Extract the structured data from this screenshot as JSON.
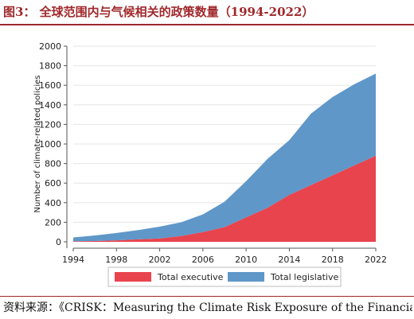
{
  "figure": {
    "title": "图3： 全球范围内与气候相关的政策数量（1994-2022）",
    "source": "资料来源：《CRISK：Measuring the Climate Risk Exposure of the Financial"
  },
  "colors": {
    "title": "#a0282c",
    "executive": "#e8444e",
    "legislative": "#5f97c9",
    "axis": "#555555"
  },
  "chart_data": {
    "type": "area",
    "stacked": true,
    "ylabel": "Number of climate-related policies",
    "xlabel": "",
    "xlim": [
      1994,
      2022
    ],
    "ylim": [
      0,
      2000
    ],
    "x_ticks": [
      1994,
      1998,
      2002,
      2006,
      2010,
      2014,
      2018,
      2022
    ],
    "y_ticks": [
      0,
      200,
      400,
      600,
      800,
      1000,
      1200,
      1400,
      1600,
      1800,
      2000
    ],
    "grid": "horizontal",
    "legend_position": "bottom",
    "x": [
      1994,
      1996,
      1998,
      2000,
      2002,
      2004,
      2006,
      2008,
      2010,
      2012,
      2014,
      2016,
      2018,
      2020,
      2022
    ],
    "series": [
      {
        "name": "Total executive",
        "color": "#e8444e",
        "values": [
          5,
          8,
          15,
          25,
          35,
          60,
          100,
          150,
          250,
          350,
          480,
          580,
          680,
          780,
          880
        ]
      },
      {
        "name": "Total legislative",
        "color": "#5f97c9",
        "values": [
          40,
          57,
          75,
          95,
          120,
          140,
          180,
          260,
          370,
          500,
          560,
          730,
          800,
          830,
          840
        ]
      }
    ],
    "legend": [
      "Total executive",
      "Total legislative"
    ]
  }
}
